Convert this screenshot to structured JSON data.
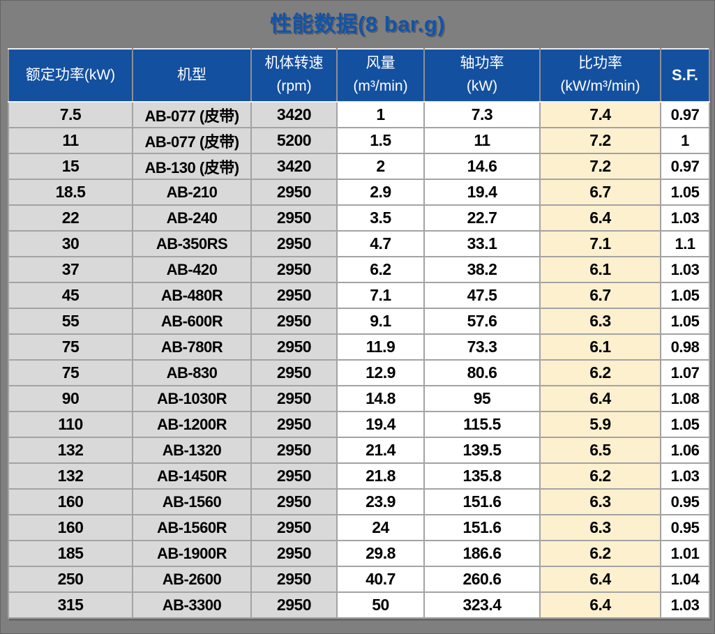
{
  "title": "性能数据(8 bar.g)",
  "colors": {
    "page_background": "#7f7f7f",
    "title_text": "#1254a8",
    "header_background": "#1450a0",
    "header_text": "#ffffff",
    "gray_cell": "#d9d9d9",
    "white_cell": "#ffffff",
    "cream_cell": "#fcf0ce",
    "cell_border": "#a3a3a3",
    "data_text": "#000000"
  },
  "table": {
    "columns": [
      {
        "title": "额定功率(kW)",
        "unit": ""
      },
      {
        "title": "机型",
        "unit": ""
      },
      {
        "title": "机体转速",
        "unit": "(rpm)"
      },
      {
        "title": "风量",
        "unit": "(m³/min)"
      },
      {
        "title": "轴功率",
        "unit": "(kW)"
      },
      {
        "title": "比功率",
        "unit": "(kW/m³/min)"
      },
      {
        "title": "S.F.",
        "unit": ""
      }
    ],
    "rows": [
      [
        "7.5",
        "AB-077 (皮带)",
        "3420",
        "1",
        "7.3",
        "7.4",
        "0.97"
      ],
      [
        "11",
        "AB-077 (皮带)",
        "5200",
        "1.5",
        "11",
        "7.2",
        "1"
      ],
      [
        "15",
        "AB-130 (皮带)",
        "3420",
        "2",
        "14.6",
        "7.2",
        "0.97"
      ],
      [
        "18.5",
        "AB-210",
        "2950",
        "2.9",
        "19.4",
        "6.7",
        "1.05"
      ],
      [
        "22",
        "AB-240",
        "2950",
        "3.5",
        "22.7",
        "6.4",
        "1.03"
      ],
      [
        "30",
        "AB-350RS",
        "2950",
        "4.7",
        "33.1",
        "7.1",
        "1.1"
      ],
      [
        "37",
        "AB-420",
        "2950",
        "6.2",
        "38.2",
        "6.1",
        "1.03"
      ],
      [
        "45",
        "AB-480R",
        "2950",
        "7.1",
        "47.5",
        "6.7",
        "1.05"
      ],
      [
        "55",
        "AB-600R",
        "2950",
        "9.1",
        "57.6",
        "6.3",
        "1.05"
      ],
      [
        "75",
        "AB-780R",
        "2950",
        "11.9",
        "73.3",
        "6.1",
        "0.98"
      ],
      [
        "75",
        "AB-830",
        "2950",
        "12.9",
        "80.6",
        "6.2",
        "1.07"
      ],
      [
        "90",
        "AB-1030R",
        "2950",
        "14.8",
        "95",
        "6.4",
        "1.08"
      ],
      [
        "110",
        "AB-1200R",
        "2950",
        "19.4",
        "115.5",
        "5.9",
        "1.05"
      ],
      [
        "132",
        "AB-1320",
        "2950",
        "21.4",
        "139.5",
        "6.5",
        "1.06"
      ],
      [
        "132",
        "AB-1450R",
        "2950",
        "21.8",
        "135.8",
        "6.2",
        "1.03"
      ],
      [
        "160",
        "AB-1560",
        "2950",
        "23.9",
        "151.6",
        "6.3",
        "0.95"
      ],
      [
        "160",
        "AB-1560R",
        "2950",
        "24",
        "151.6",
        "6.3",
        "0.95"
      ],
      [
        "185",
        "AB-1900R",
        "2950",
        "29.8",
        "186.6",
        "6.2",
        "1.01"
      ],
      [
        "250",
        "AB-2600",
        "2950",
        "40.7",
        "260.6",
        "6.4",
        "1.04"
      ],
      [
        "315",
        "AB-3300",
        "2950",
        "50",
        "323.4",
        "6.4",
        "1.03"
      ]
    ]
  }
}
